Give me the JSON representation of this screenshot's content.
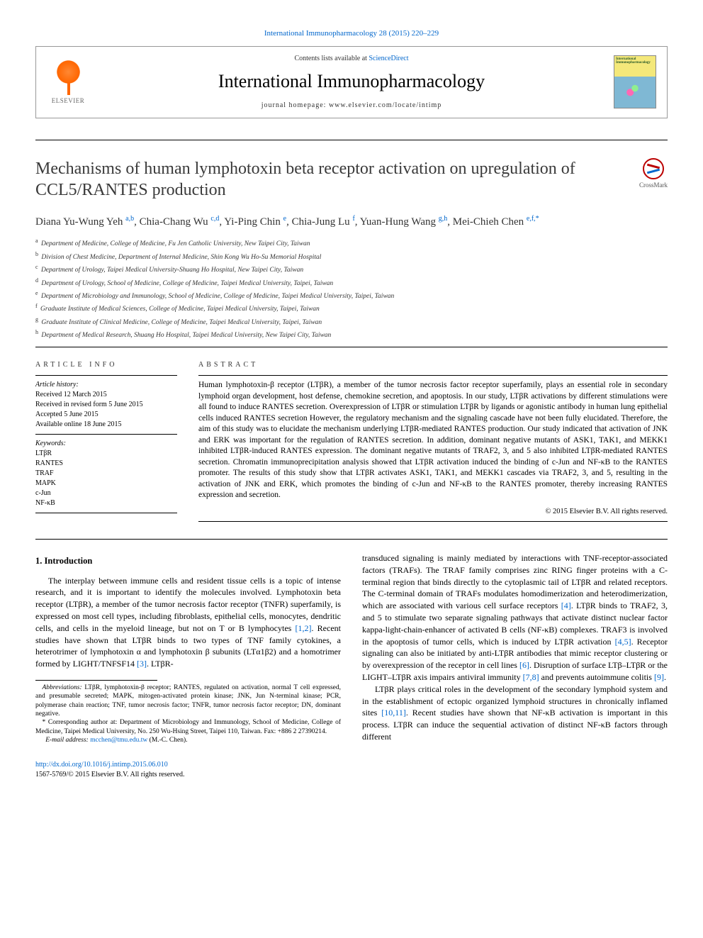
{
  "top_link": {
    "journal": "International Immunopharmacology",
    "cite": "28 (2015) 220–229"
  },
  "header": {
    "contents_prefix": "Contents lists available at ",
    "contents_link": "ScienceDirect",
    "journal_name": "International Immunopharmacology",
    "homepage_label": "journal homepage: ",
    "homepage_url": "www.elsevier.com/locate/intimp",
    "elsevier_label": "ELSEVIER",
    "cover_label": "International Immunopharmacology"
  },
  "crossmark_label": "CrossMark",
  "title": "Mechanisms of human lymphotoxin beta receptor activation on upregulation of CCL5/RANTES production",
  "authors_html": "Diana Yu-Wung Yeh <sup>a,b</sup>, Chia-Chang Wu <sup>c,d</sup>, Yi-Ping Chin <sup>e</sup>, Chia-Jung Lu <sup>f</sup>, Yuan-Hung Wang <sup>g,h</sup>, Mei-Chieh Chen <sup>e,f,*</sup>",
  "affiliations": [
    {
      "sup": "a",
      "text": "Department of Medicine, College of Medicine, Fu Jen Catholic University, New Taipei City, Taiwan"
    },
    {
      "sup": "b",
      "text": "Division of Chest Medicine, Department of Internal Medicine, Shin Kong Wu Ho-Su Memorial Hospital"
    },
    {
      "sup": "c",
      "text": "Department of Urology, Taipei Medical University-Shuang Ho Hospital, New Taipei City, Taiwan"
    },
    {
      "sup": "d",
      "text": "Department of Urology, School of Medicine, College of Medicine, Taipei Medical University, Taipei, Taiwan"
    },
    {
      "sup": "e",
      "text": "Department of Microbiology and Immunology, School of Medicine, College of Medicine, Taipei Medical University, Taipei, Taiwan"
    },
    {
      "sup": "f",
      "text": "Graduate Institute of Medical Sciences, College of Medicine, Taipei Medical University, Taipei, Taiwan"
    },
    {
      "sup": "g",
      "text": "Graduate Institute of Clinical Medicine, College of Medicine, Taipei Medical University, Taipei, Taiwan"
    },
    {
      "sup": "h",
      "text": "Department of Medical Research, Shuang Ho Hospital, Taipei Medical University, New Taipei City, Taiwan"
    }
  ],
  "article_info_head": "article info",
  "abstract_head": "abstract",
  "history": {
    "label": "Article history:",
    "received": "Received 12 March 2015",
    "revised": "Received in revised form 5 June 2015",
    "accepted": "Accepted 5 June 2015",
    "online": "Available online 18 June 2015"
  },
  "keywords": {
    "label": "Keywords:",
    "items": [
      "LTβR",
      "RANTES",
      "TRAF",
      "MAPK",
      "c-Jun",
      "NF-κB"
    ]
  },
  "abstract": "Human lymphotoxin-β receptor (LTβR), a member of the tumor necrosis factor receptor superfamily, plays an essential role in secondary lymphoid organ development, host defense, chemokine secretion, and apoptosis. In our study, LTβR activations by different stimulations were all found to induce RANTES secretion. Overexpression of LTβR or stimulation LTβR by ligands or agonistic antibody in human lung epithelial cells induced RANTES secretion However, the regulatory mechanism and the signaling cascade have not been fully elucidated. Therefore, the aim of this study was to elucidate the mechanism underlying LTβR-mediated RANTES production. Our study indicated that activation of JNK and ERK was important for the regulation of RANTES secretion. In addition, dominant negative mutants of ASK1, TAK1, and MEKK1 inhibited LTβR-induced RANTES expression. The dominant negative mutants of TRAF2, 3, and 5 also inhibited LTβR-mediated RANTES secretion. Chromatin immunoprecipitation analysis showed that LTβR activation induced the binding of c-Jun and NF-κB to the RANTES promoter. The results of this study show that LTβR activates ASK1, TAK1, and MEKK1 cascades via TRAF2, 3, and 5, resulting in the activation of JNK and ERK, which promotes the binding of c-Jun and NF-κB to the RANTES promoter, thereby increasing RANTES expression and secretion.",
  "copyright": "© 2015 Elsevier B.V. All rights reserved.",
  "intro_head": "1. Introduction",
  "intro_p1_a": "The interplay between immune cells and resident tissue cells is a topic of intense research, and it is important to identify the molecules involved. Lymphotoxin beta receptor (LTβR), a member of the tumor necrosis factor receptor (TNFR) superfamily, is expressed on most cell types, including fibroblasts, epithelial cells, monocytes, dendritic cells, and cells in the myeloid lineage, but not on T or B lymphocytes ",
  "intro_ref12": "[1,2]",
  "intro_p1_b": ". Recent studies have shown that LTβR binds to two types of TNF family cytokines, a heterotrimer of lymphotoxin α and lymphotoxin β subunits (LTα1β2) and a homotrimer formed by LIGHT/TNFSF14 ",
  "intro_ref3": "[3]",
  "intro_p1_c": ". LTβR-",
  "intro_p2_a": "transduced signaling is mainly mediated by interactions with TNF-receptor-associated factors (TRAFs). The TRAF family comprises zinc RING finger proteins with a C-terminal region that binds directly to the cytoplasmic tail of LTβR and related receptors. The C-terminal domain of TRAFs modulates homodimerization and heterodimerization, which are associated with various cell surface receptors ",
  "intro_ref4": "[4]",
  "intro_p2_b": ". LTβR binds to TRAF2, 3, and 5 to stimulate two separate signaling pathways that activate distinct nuclear factor kappa-light-chain-enhancer of activated B cells (NF-κB) complexes. TRAF3 is involved in the apoptosis of tumor cells, which is induced by LTβR activation ",
  "intro_ref45": "[4,5]",
  "intro_p2_c": ". Receptor signaling can also be initiated by anti-LTβR antibodies that mimic receptor clustering or by overexpression of the receptor in cell lines ",
  "intro_ref6": "[6]",
  "intro_p2_d": ". Disruption of surface LTβ–LTβR or the LIGHT–LTβR axis impairs antiviral immunity ",
  "intro_ref78": "[7,8]",
  "intro_p2_e": " and prevents autoimmune colitis ",
  "intro_ref9": "[9]",
  "intro_p2_f": ".",
  "intro_p3_a": "LTβR plays critical roles in the development of the secondary lymphoid system and in the establishment of ectopic organized lymphoid structures in chronically inflamed sites ",
  "intro_ref1011": "[10,11]",
  "intro_p3_b": ". Recent studies have shown that NF-κB activation is important in this process. LTβR can induce the sequential activation of distinct NF-κB factors through different",
  "footnotes": {
    "abbrev_label": "Abbreviations:",
    "abbrev": " LTβR, lymphotoxin-β receptor; RANTES, regulated on activation, normal T cell expressed, and presumable secreted; MAPK, mitogen-activated protein kinase; JNK, Jun N-terminal kinase; PCR, polymerase chain reaction; TNF, tumor necrosis factor; TNFR, tumor necrosis factor receptor; DN, dominant negative.",
    "corr_label": "* Corresponding author at:",
    "corr": " Department of Microbiology and Immunology, School of Medicine, College of Medicine, Taipei Medical University, No. 250 Wu-Hsing Street, Taipei 110, Taiwan. Fax: +886 2 27390214.",
    "email_label": "E-mail address:",
    "email": "mcchen@tmu.edu.tw",
    "email_suffix": " (M.-C. Chen)."
  },
  "bottom": {
    "doi": "http://dx.doi.org/10.1016/j.intimp.2015.06.010",
    "issn_line": "1567-5769/© 2015 Elsevier B.V. All rights reserved."
  },
  "colors": {
    "link": "#0066cc",
    "elsevier": "#ff6600",
    "text": "#000000",
    "title": "#3a3a3a"
  }
}
